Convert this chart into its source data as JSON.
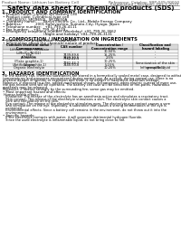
{
  "bg_color": "#ffffff",
  "header_left": "Product Name: Lithium Ion Battery Cell",
  "header_right_line1": "Reference: Catalog: SBP-049-00010",
  "header_right_line2": "Established / Revision: Dec 1 2010",
  "title": "Safety data sheet for chemical products (SDS)",
  "section1_title": "1. PRODUCT AND COMPANY IDENTIFICATION",
  "section1_lines": [
    "• Product name: Lithium Ion Battery Cell",
    "• Product code: Cylindrical-type cell",
    "    SR18650U, SR18650L, SR18650A",
    "• Company name:      Sanyo Electric Co., Ltd., Mobile Energy Company",
    "• Address:            2001 Kamiyashiro, Sumoto-City, Hyogo, Japan",
    "• Telephone number:   +81-799-26-4111",
    "• Fax number:    +81-799-26-4129",
    "• Emergency telephone number (Weekday) +81-799-26-3662",
    "                                    (Night and holiday) +81-799-26-3131"
  ],
  "section2_title": "2. COMPOSITION / INFORMATION ON INGREDIENTS",
  "section2_lines": [
    "• Substance or preparation: Preparation",
    "• Information about the chemical nature of product:"
  ],
  "table_headers": [
    "Common chemical name /\nCommon name",
    "CAS number",
    "Concentration /\nConcentration range",
    "Classification and\nhazard labeling"
  ],
  "table_rows": [
    [
      "Lithium cobalt tantalate\n(LiMn/Co/Ni)O2)",
      "-",
      "30-50%",
      "-"
    ],
    [
      "Iron",
      "7439-89-6",
      "15-25%",
      "-"
    ],
    [
      "Aluminum",
      "7429-90-5",
      "2-5%",
      "-"
    ],
    [
      "Graphite\n(Flake graphite-1)\n(Artificial graphite-1)",
      "7782-42-5\n7782-44-7",
      "10-25%",
      "-"
    ],
    [
      "Copper",
      "7440-50-8",
      "5-15%",
      "Sensitization of the skin\ngroup No.2"
    ],
    [
      "Organic electrolyte",
      "-",
      "10-20%",
      "Inflammable liquid"
    ]
  ],
  "section3_title": "3. HAZARDS IDENTIFICATION",
  "section3_para1": [
    "For the battery can, chemical substances are stored in a hermetically sealed metal case, designed to withstand",
    "temperatures and pressures encountered during normal use. As a result, during normal use, there is no",
    "physical danger of ignition or explosion and there is no danger of hazardous materials leakage.",
    "However, if exposed to a fire, added mechanical shocks, decomposed, when electric current of more use,",
    "the gas release vent will be operated. The battery cell case will be breached or fire-paths. Hazardous",
    "materials may be released.",
    "Moreover, if heated strongly by the surrounding fire, some gas may be emitted."
  ],
  "section3_bullet1_title": "• Most important hazard and effects:",
  "section3_bullet1_sub": [
    "Human health effects:",
    "  Inhalation: The release of the electrolyte has an anesthesia action and stimulates a respiratory tract.",
    "  Skin contact: The release of the electrolyte stimulates a skin. The electrolyte skin contact causes a",
    "  sore and stimulation on the skin.",
    "  Eye contact: The release of the electrolyte stimulates eyes. The electrolyte eye contact causes a sore",
    "  and stimulation on the eye. Especially, a substance that causes a strong inflammation of the eye is",
    "  contained.",
    "  Environmental effects: Since a battery cell remains in the environment, do not throw out it into the",
    "  environment."
  ],
  "section3_bullet2_title": "• Specific hazards:",
  "section3_bullet2_sub": [
    "  If the electrolyte contacts with water, it will generate detrimental hydrogen fluoride.",
    "  Since the used electrolyte is inflammable liquid, do not bring close to fire."
  ]
}
